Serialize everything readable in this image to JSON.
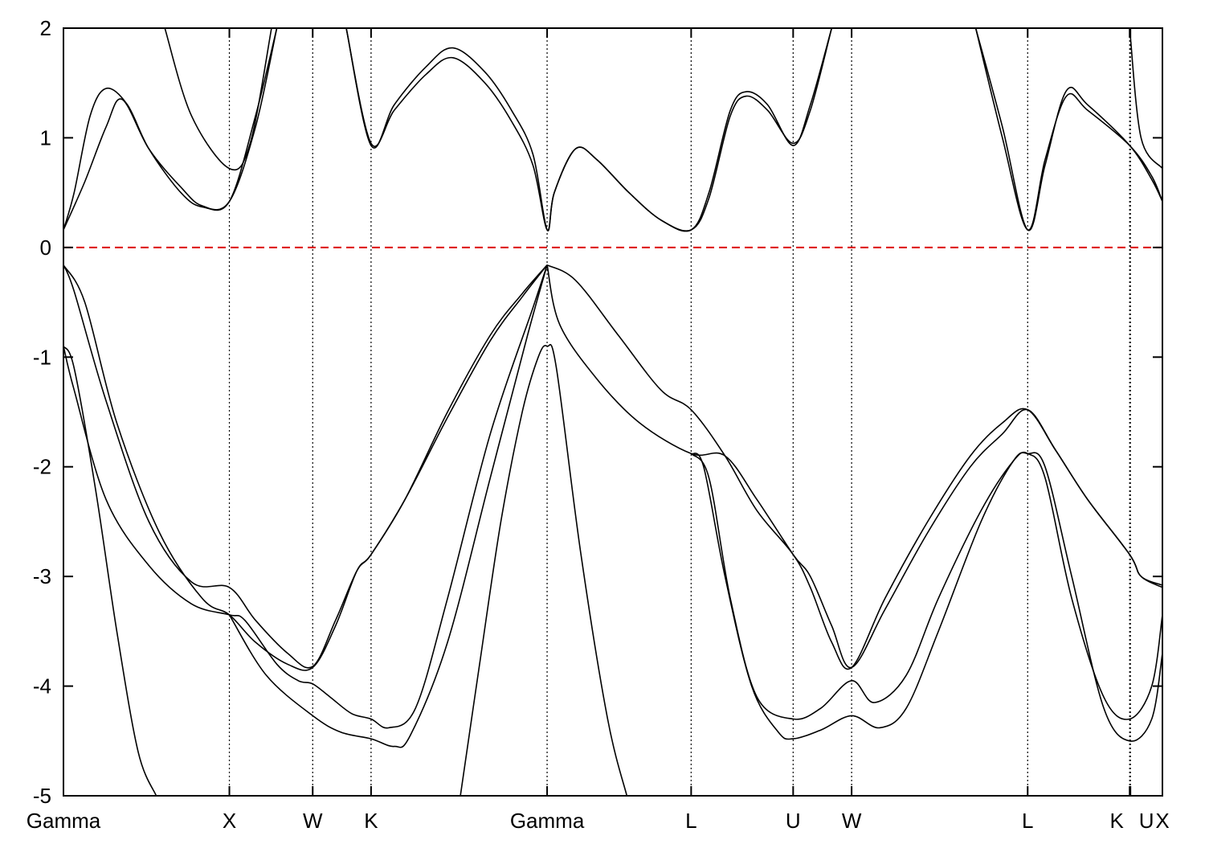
{
  "chart_data": {
    "type": "line",
    "title": "",
    "xlabel": "",
    "ylabel": "",
    "ylim": [
      -5,
      2
    ],
    "xlim": [
      0,
      10
    ],
    "yticks": [
      2,
      1,
      0,
      -1,
      -2,
      -3,
      -4,
      -5
    ],
    "grid": false,
    "fermi_level": {
      "y": 0,
      "color": "#dd0000",
      "style": "dashed"
    },
    "k_points": [
      {
        "label": "Gamma",
        "x": 0.0
      },
      {
        "label": "X",
        "x": 1.555
      },
      {
        "label": "W",
        "x": 2.336
      },
      {
        "label": "K",
        "x": 2.883
      },
      {
        "label": "Gamma",
        "x": 4.533
      },
      {
        "label": "L",
        "x": 5.883
      },
      {
        "label": "U",
        "x": 6.839
      },
      {
        "label": "W",
        "x": 7.387
      },
      {
        "label": "L",
        "x": 9.037
      },
      {
        "label": "K",
        "x": 9.993
      },
      {
        "label": "U",
        "x": 10.0
      },
      {
        "label": "X",
        "x": 10.0
      }
    ],
    "series": [
      {
        "color": "#000000",
        "points": [
          [
            0,
            -0.9
          ],
          [
            0.1,
            -1.1
          ],
          [
            0.3,
            -2.2
          ],
          [
            0.5,
            -3.5
          ],
          [
            0.7,
            -4.6
          ],
          [
            0.87,
            -5.0
          ]
        ]
      },
      {
        "color": "#000000",
        "points": [
          [
            3.72,
            -5.0
          ],
          [
            3.9,
            -3.8
          ],
          [
            4.1,
            -2.5
          ],
          [
            4.3,
            -1.5
          ],
          [
            4.45,
            -1.0
          ],
          [
            4.533,
            -0.9
          ],
          [
            4.62,
            -1.1
          ],
          [
            4.85,
            -2.8
          ],
          [
            5.1,
            -4.3
          ],
          [
            5.28,
            -5.0
          ]
        ]
      },
      {
        "color": "#000000",
        "points": [
          [
            0,
            -0.9
          ],
          [
            0.1,
            -1.3
          ],
          [
            0.4,
            -2.3
          ],
          [
            0.8,
            -2.9
          ],
          [
            1.2,
            -3.25
          ],
          [
            1.555,
            -3.35
          ],
          [
            1.7,
            -3.4
          ],
          [
            2.0,
            -3.8
          ],
          [
            2.2,
            -3.95
          ],
          [
            2.336,
            -3.98
          ],
          [
            2.5,
            -4.1
          ],
          [
            2.7,
            -4.25
          ],
          [
            2.883,
            -4.3
          ],
          [
            3.05,
            -4.38
          ],
          [
            3.3,
            -4.2
          ],
          [
            3.6,
            -3.2
          ],
          [
            4.0,
            -1.7
          ],
          [
            4.4,
            -0.55
          ],
          [
            4.533,
            -0.16
          ]
        ]
      },
      {
        "color": "#000000",
        "points": [
          [
            0,
            -0.16
          ],
          [
            0.1,
            -0.4
          ],
          [
            0.4,
            -1.4
          ],
          [
            0.8,
            -2.5
          ],
          [
            1.2,
            -3.05
          ],
          [
            1.555,
            -3.1
          ],
          [
            1.8,
            -3.4
          ],
          [
            2.1,
            -3.7
          ],
          [
            2.336,
            -3.82
          ],
          [
            2.55,
            -3.4
          ],
          [
            2.75,
            -2.95
          ],
          [
            2.883,
            -2.8
          ],
          [
            3.2,
            -2.3
          ],
          [
            3.6,
            -1.5
          ],
          [
            4.0,
            -0.8
          ],
          [
            4.3,
            -0.42
          ],
          [
            4.533,
            -0.16
          ]
        ]
      },
      {
        "color": "#000000",
        "points": [
          [
            0,
            -0.16
          ],
          [
            0.2,
            -0.5
          ],
          [
            0.5,
            -1.6
          ],
          [
            0.9,
            -2.6
          ],
          [
            1.3,
            -3.2
          ],
          [
            1.555,
            -3.35
          ],
          [
            1.8,
            -3.6
          ],
          [
            2.1,
            -3.8
          ],
          [
            2.336,
            -3.83
          ],
          [
            2.55,
            -3.45
          ],
          [
            2.75,
            -2.95
          ],
          [
            2.883,
            -2.8
          ],
          [
            3.2,
            -2.3
          ],
          [
            3.6,
            -1.55
          ],
          [
            4.0,
            -0.85
          ],
          [
            4.3,
            -0.45
          ],
          [
            4.533,
            -0.16
          ]
        ]
      },
      {
        "color": "#000000",
        "points": [
          [
            1.555,
            -3.35
          ],
          [
            1.9,
            -3.9
          ],
          [
            2.336,
            -4.27
          ],
          [
            2.6,
            -4.42
          ],
          [
            2.883,
            -4.48
          ],
          [
            3.1,
            -4.55
          ],
          [
            3.25,
            -4.45
          ],
          [
            3.6,
            -3.6
          ],
          [
            4.0,
            -2.1
          ],
          [
            4.35,
            -0.8
          ],
          [
            4.533,
            -0.16
          ]
        ]
      },
      {
        "color": "#000000",
        "points": [
          [
            4.533,
            -0.16
          ],
          [
            4.8,
            -0.3
          ],
          [
            5.2,
            -0.8
          ],
          [
            5.6,
            -1.3
          ],
          [
            5.883,
            -1.48
          ],
          [
            6.2,
            -1.9
          ],
          [
            6.5,
            -2.4
          ],
          [
            6.839,
            -2.8
          ],
          [
            7.0,
            -3.1
          ],
          [
            7.2,
            -3.6
          ],
          [
            7.387,
            -3.83
          ],
          [
            7.7,
            -3.2
          ],
          [
            8.1,
            -2.5
          ],
          [
            8.5,
            -1.9
          ],
          [
            8.8,
            -1.6
          ],
          [
            9.037,
            -1.48
          ],
          [
            9.3,
            -1.85
          ],
          [
            9.6,
            -2.3
          ],
          [
            9.993,
            -2.8
          ],
          [
            10.1,
            -3.0
          ],
          [
            10.3,
            -3.08
          ]
        ]
      },
      {
        "color": "#000000",
        "points": [
          [
            4.533,
            -0.16
          ],
          [
            4.65,
            -0.7
          ],
          [
            5.0,
            -1.2
          ],
          [
            5.4,
            -1.6
          ],
          [
            5.883,
            -1.88
          ],
          [
            6.2,
            -1.9
          ],
          [
            6.5,
            -2.3
          ],
          [
            6.839,
            -2.8
          ],
          [
            7.0,
            -3.0
          ],
          [
            7.2,
            -3.45
          ],
          [
            7.387,
            -3.83
          ],
          [
            7.7,
            -3.3
          ],
          [
            8.1,
            -2.6
          ],
          [
            8.5,
            -2.0
          ],
          [
            8.8,
            -1.7
          ],
          [
            9.037,
            -1.48
          ],
          [
            9.3,
            -1.85
          ],
          [
            9.6,
            -2.3
          ],
          [
            9.993,
            -2.8
          ],
          [
            10.1,
            -3.0
          ],
          [
            10.3,
            -3.1
          ]
        ]
      },
      {
        "color": "#000000",
        "points": [
          [
            5.883,
            -1.88
          ],
          [
            6.0,
            -2.0
          ],
          [
            6.2,
            -3.0
          ],
          [
            6.45,
            -4.0
          ],
          [
            6.7,
            -4.42
          ],
          [
            6.839,
            -4.48
          ],
          [
            7.1,
            -4.4
          ],
          [
            7.387,
            -4.27
          ],
          [
            7.65,
            -4.38
          ],
          [
            7.9,
            -4.2
          ],
          [
            8.2,
            -3.5
          ],
          [
            8.6,
            -2.5
          ],
          [
            8.9,
            -1.95
          ],
          [
            9.037,
            -1.88
          ],
          [
            9.2,
            -2.0
          ],
          [
            9.45,
            -3.0
          ],
          [
            9.75,
            -4.2
          ],
          [
            9.993,
            -4.5
          ],
          [
            10.2,
            -4.3
          ],
          [
            10.3,
            -3.7
          ]
        ]
      },
      {
        "color": "#000000",
        "points": [
          [
            5.883,
            -1.88
          ],
          [
            6.05,
            -2.1
          ],
          [
            6.25,
            -3.2
          ],
          [
            6.5,
            -4.1
          ],
          [
            6.839,
            -4.3
          ],
          [
            7.1,
            -4.2
          ],
          [
            7.387,
            -3.95
          ],
          [
            7.6,
            -4.15
          ],
          [
            7.9,
            -3.9
          ],
          [
            8.2,
            -3.2
          ],
          [
            8.6,
            -2.4
          ],
          [
            8.9,
            -1.95
          ],
          [
            9.037,
            -1.88
          ],
          [
            9.2,
            -2.1
          ],
          [
            9.45,
            -3.2
          ],
          [
            9.75,
            -4.1
          ],
          [
            9.993,
            -4.3
          ],
          [
            10.2,
            -4.0
          ],
          [
            10.3,
            -3.35
          ]
        ]
      },
      {
        "color": "#000000",
        "points": [
          [
            0,
            0.16
          ],
          [
            0.2,
            0.6
          ],
          [
            0.4,
            1.1
          ],
          [
            0.55,
            1.35
          ],
          [
            0.8,
            0.9
          ],
          [
            1.1,
            0.55
          ],
          [
            1.3,
            0.38
          ],
          [
            1.555,
            0.42
          ],
          [
            1.8,
            1.2
          ],
          [
            2.0,
            2.0
          ]
        ]
      },
      {
        "color": "#000000",
        "points": [
          [
            0,
            0.16
          ],
          [
            0.1,
            0.5
          ],
          [
            0.25,
            1.2
          ],
          [
            0.4,
            1.45
          ],
          [
            0.6,
            1.3
          ],
          [
            0.8,
            0.9
          ],
          [
            1.1,
            0.5
          ],
          [
            1.3,
            0.37
          ],
          [
            1.555,
            0.42
          ],
          [
            1.8,
            1.1
          ],
          [
            2.0,
            2.0
          ]
        ]
      },
      {
        "color": "#000000",
        "points": [
          [
            0.95,
            2.0
          ],
          [
            1.2,
            1.2
          ],
          [
            1.555,
            0.72
          ],
          [
            1.75,
            0.95
          ],
          [
            1.95,
            2.0
          ]
        ]
      },
      {
        "color": "#000000",
        "points": [
          [
            2.65,
            2.0
          ],
          [
            2.883,
            0.93
          ],
          [
            3.1,
            1.3
          ],
          [
            3.4,
            1.65
          ],
          [
            3.65,
            1.82
          ],
          [
            3.95,
            1.6
          ],
          [
            4.2,
            1.25
          ],
          [
            4.4,
            0.85
          ],
          [
            4.533,
            0.16
          ],
          [
            4.6,
            0.5
          ],
          [
            4.8,
            0.9
          ],
          [
            5.0,
            0.8
          ],
          [
            5.3,
            0.5
          ],
          [
            5.6,
            0.25
          ],
          [
            5.883,
            0.16
          ],
          [
            6.05,
            0.5
          ],
          [
            6.25,
            1.25
          ],
          [
            6.4,
            1.42
          ],
          [
            6.6,
            1.3
          ],
          [
            6.839,
            0.93
          ],
          [
            7.0,
            1.3
          ],
          [
            7.2,
            2.0
          ]
        ]
      },
      {
        "color": "#000000",
        "points": [
          [
            2.65,
            2.0
          ],
          [
            2.883,
            0.95
          ],
          [
            3.1,
            1.25
          ],
          [
            3.4,
            1.58
          ],
          [
            3.65,
            1.73
          ],
          [
            3.95,
            1.5
          ],
          [
            4.2,
            1.15
          ],
          [
            4.4,
            0.75
          ],
          [
            4.533,
            0.16
          ],
          [
            4.6,
            0.5
          ],
          [
            4.8,
            0.9
          ],
          [
            5.0,
            0.8
          ],
          [
            5.3,
            0.5
          ],
          [
            5.6,
            0.25
          ],
          [
            5.883,
            0.16
          ],
          [
            6.05,
            0.45
          ],
          [
            6.25,
            1.2
          ],
          [
            6.4,
            1.38
          ],
          [
            6.6,
            1.25
          ],
          [
            6.839,
            0.95
          ],
          [
            7.0,
            1.25
          ],
          [
            7.2,
            2.0
          ]
        ]
      },
      {
        "color": "#000000",
        "points": [
          [
            8.55,
            2.0
          ],
          [
            8.8,
            1.0
          ],
          [
            9.037,
            0.16
          ],
          [
            9.2,
            0.8
          ],
          [
            9.4,
            1.38
          ],
          [
            9.6,
            1.25
          ],
          [
            9.993,
            0.93
          ],
          [
            10.2,
            0.65
          ],
          [
            10.3,
            0.42
          ]
        ]
      },
      {
        "color": "#000000",
        "points": [
          [
            8.55,
            2.0
          ],
          [
            8.8,
            1.1
          ],
          [
            9.037,
            0.16
          ],
          [
            9.2,
            0.75
          ],
          [
            9.4,
            1.43
          ],
          [
            9.6,
            1.3
          ],
          [
            9.993,
            0.93
          ],
          [
            10.2,
            0.62
          ],
          [
            10.3,
            0.42
          ]
        ]
      },
      {
        "color": "#000000",
        "points": [
          [
            9.993,
            2.0
          ],
          [
            10.1,
            1.0
          ],
          [
            10.3,
            0.72
          ]
        ]
      }
    ]
  }
}
